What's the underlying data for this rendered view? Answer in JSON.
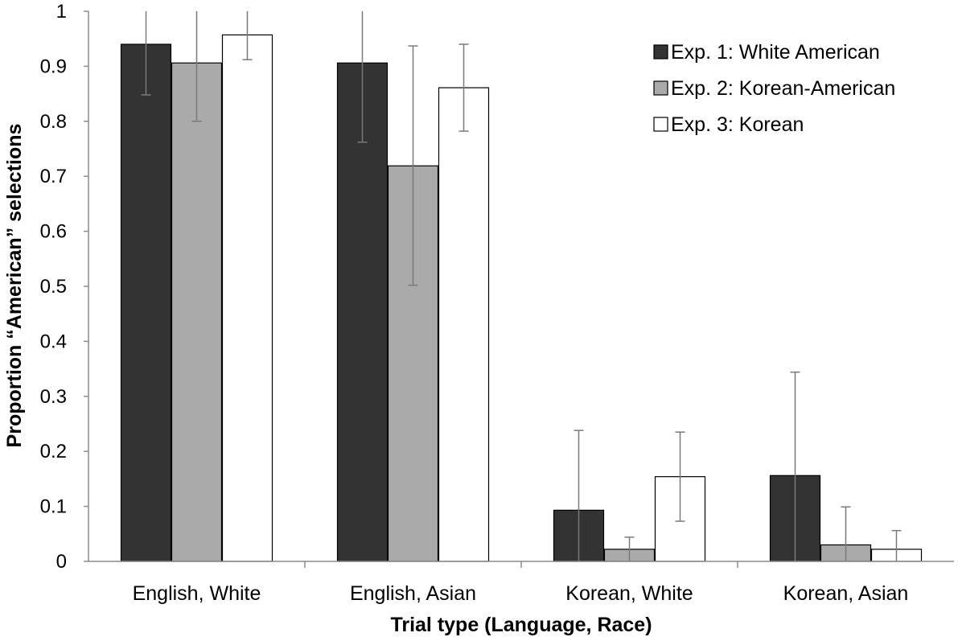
{
  "chart_data": {
    "type": "bar",
    "title": "",
    "xlabel": "Trial type (Language, Race)",
    "ylabel": "Proportion “American” selections",
    "ylim": [
      0,
      1
    ],
    "yticks": [
      "0",
      "0.1",
      "0.2",
      "0.3",
      "0.4",
      "0.5",
      "0.6",
      "0.7",
      "0.8",
      "0.9",
      "1"
    ],
    "categories": [
      "English, White",
      "English, Asian",
      "Korean, White",
      "Korean, Asian"
    ],
    "grid": false,
    "legend_position": "top-right",
    "series": [
      {
        "name": "Exp. 1: White American",
        "color": "#333333",
        "values": [
          0.94,
          0.906,
          0.093,
          0.156
        ],
        "error_low": [
          0.848,
          0.762,
          0.0,
          0.0
        ],
        "error_high": [
          1.0,
          1.0,
          0.238,
          0.344
        ]
      },
      {
        "name": "Exp. 2: Korean-American",
        "color": "#aaaaaa",
        "values": [
          0.906,
          0.719,
          0.022,
          0.03
        ],
        "error_low": [
          0.8,
          0.502,
          0.0,
          0.0
        ],
        "error_high": [
          1.0,
          0.937,
          0.044,
          0.099
        ]
      },
      {
        "name": "Exp. 3: Korean",
        "color": "#ffffff",
        "values": [
          0.957,
          0.861,
          0.154,
          0.022
        ],
        "error_low": [
          0.912,
          0.782,
          0.073,
          0.0
        ],
        "error_high": [
          1.0,
          0.94,
          0.235,
          0.056
        ]
      }
    ]
  }
}
